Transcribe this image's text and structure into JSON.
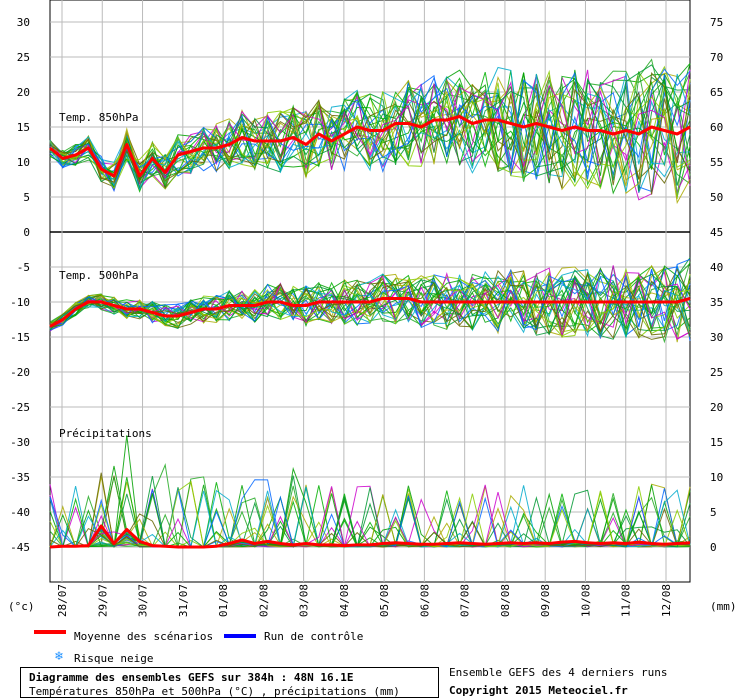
{
  "chart_data": {
    "type": "line",
    "x": [
      "28/07",
      "29/07",
      "30/07",
      "31/07",
      "01/08",
      "02/08",
      "03/08",
      "04/08",
      "05/08",
      "06/08",
      "07/08",
      "08/08",
      "09/08",
      "10/08",
      "11/08",
      "12/08"
    ],
    "panels": [
      {
        "title": "Temp. 850hPa",
        "left_ticks": [
          "30",
          "25",
          "20",
          "15",
          "10",
          "5",
          "0"
        ],
        "right_ticks": [
          "75",
          "70",
          "65",
          "60",
          "55",
          "50"
        ],
        "ylim": [
          0,
          30
        ],
        "mean_series": {
          "name": "Moyenne des scénarios",
          "values": [
            12,
            10.5,
            11,
            12,
            9,
            8,
            12.5,
            8,
            10.5,
            8.5,
            11,
            11.5,
            12,
            12,
            12.5,
            13.5,
            13,
            13,
            13,
            13.5,
            12.5,
            14,
            13,
            14,
            15,
            14.5,
            14.5,
            15.5,
            15.5,
            15,
            16,
            16,
            16.5,
            15.5,
            16,
            16,
            15.5,
            15,
            15.5,
            15,
            14.5,
            15,
            14.5,
            14.5,
            14,
            14.5,
            14,
            15,
            14.5,
            14,
            15
          ]
        }
      },
      {
        "title": "Temp. 500hPa",
        "left_ticks": [
          "-5",
          "-10",
          "-15",
          "-20"
        ],
        "right_ticks": [
          "45",
          "40",
          "35",
          "30",
          "25"
        ],
        "ylim": [
          -22,
          0
        ],
        "mean_series": {
          "name": "Moyenne des scénarios",
          "values": [
            -13.5,
            -12.5,
            -11,
            -10,
            -10,
            -10.5,
            -11,
            -11,
            -11.5,
            -12,
            -12,
            -11.5,
            -11,
            -11,
            -10.5,
            -10.5,
            -10.5,
            -10,
            -10,
            -10.5,
            -10.5,
            -10,
            -10,
            -10,
            -10,
            -10,
            -9.5,
            -9.5,
            -9.5,
            -10,
            -10,
            -10,
            -10,
            -10,
            -10,
            -10,
            -10,
            -10,
            -10,
            -10,
            -10,
            -10,
            -10,
            -10,
            -10,
            -10,
            -10,
            -10,
            -10,
            -10,
            -9.5
          ]
        }
      },
      {
        "title": "Précipitations",
        "left_ticks": [
          "-25",
          "-30",
          "-35",
          "-40",
          "-45"
        ],
        "right_ticks": [
          "20",
          "15",
          "10",
          "5",
          "0"
        ],
        "ylim": [
          0,
          25
        ],
        "mean_series": {
          "name": "Moyenne des scénarios",
          "values": [
            0,
            0.1,
            0.1,
            0.2,
            3,
            0.5,
            2.5,
            0.8,
            0.2,
            0.1,
            0,
            0,
            0,
            0.1,
            0.5,
            1,
            0.5,
            0.8,
            0.5,
            0.3,
            0.5,
            0.3,
            0.3,
            0.2,
            0.3,
            0.3,
            0.5,
            0.6,
            0.5,
            0.4,
            0.4,
            0.5,
            0.6,
            0.5,
            0.4,
            0.5,
            0.6,
            0.5,
            0.6,
            0.5,
            0.7,
            0.8,
            0.6,
            0.5,
            0.6,
            0.5,
            0.7,
            0.5,
            0.4,
            0.5,
            0.6
          ]
        }
      }
    ],
    "left_unit": "(°c)",
    "right_unit": "(mm)"
  },
  "legend": {
    "mean_label": "Moyenne des scénarios",
    "mean_color": "#ff0000",
    "control_label": "Run de contrôle",
    "control_color": "#0000ff",
    "snow_label": "Risque neige",
    "snow_icon": "snowflake-icon"
  },
  "info": {
    "line1": "Diagramme des ensembles GEFS sur 384h : 48N 16.1E",
    "line2": "Températures 850hPa et 500hPa (°C) , précipitations (mm)"
  },
  "credits": {
    "line1": "Ensemble GEFS des 4 derniers runs",
    "line2": "Copyright 2015 Meteociel.fr"
  },
  "colors": {
    "ensemble": [
      "#00b000",
      "#00a000",
      "#22aa22",
      "#aaaa00",
      "#cc00cc",
      "#00aacc",
      "#0066ff",
      "#88cc00",
      "#009933",
      "#666600"
    ],
    "mean": "#ff0000",
    "grid": "#bbbbbb"
  }
}
